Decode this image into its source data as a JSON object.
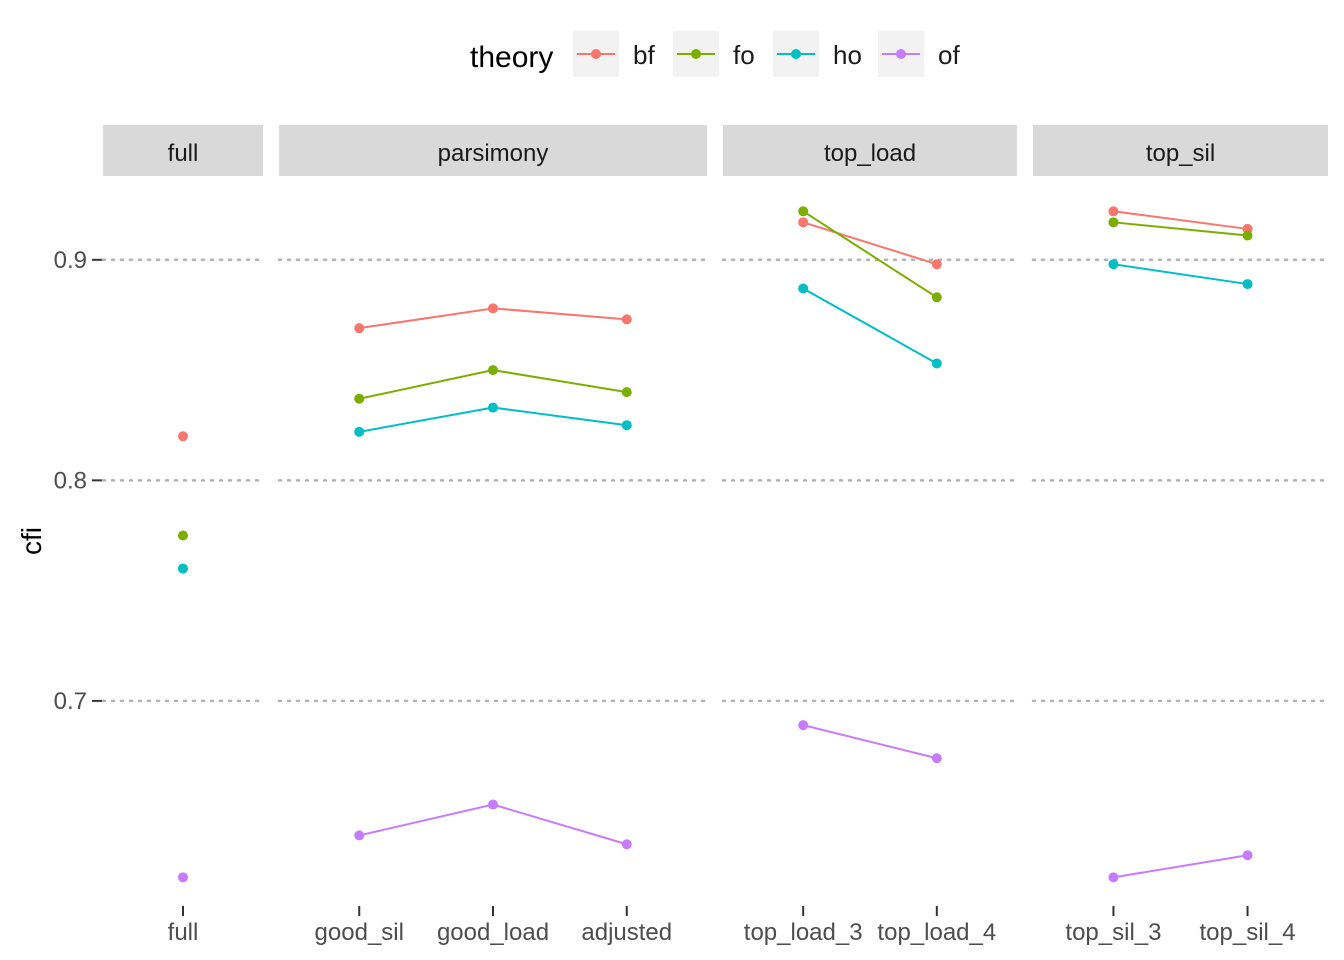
{
  "chart_data": {
    "type": "line",
    "ylabel": "cfi",
    "legend": {
      "title": "theory",
      "position": "top"
    },
    "colors": {
      "bf": "#F8766D",
      "fo": "#7CAE00",
      "ho": "#00BFC4",
      "of": "#C77CFF"
    },
    "ylim": [
      0.607,
      0.938
    ],
    "yticks": [
      0.7,
      0.8,
      0.9
    ],
    "ytick_labels": [
      "0.7",
      "0.8",
      "0.9"
    ],
    "grid": "horizontal-dotted",
    "panels": [
      {
        "label": "full",
        "categories": [
          "full"
        ],
        "series": [
          {
            "name": "bf",
            "values": [
              0.82
            ]
          },
          {
            "name": "fo",
            "values": [
              0.775
            ]
          },
          {
            "name": "ho",
            "values": [
              0.76
            ]
          },
          {
            "name": "of",
            "values": [
              0.62
            ]
          }
        ]
      },
      {
        "label": "parsimony",
        "categories": [
          "good_sil",
          "good_load",
          "adjusted"
        ],
        "series": [
          {
            "name": "bf",
            "values": [
              0.869,
              0.878,
              0.873
            ]
          },
          {
            "name": "fo",
            "values": [
              0.837,
              0.85,
              0.84
            ]
          },
          {
            "name": "ho",
            "values": [
              0.822,
              0.833,
              0.825
            ]
          },
          {
            "name": "of",
            "values": [
              0.639,
              0.653,
              0.635
            ]
          }
        ]
      },
      {
        "label": "top_load",
        "categories": [
          "top_load_3",
          "top_load_4"
        ],
        "series": [
          {
            "name": "bf",
            "values": [
              0.917,
              0.898
            ]
          },
          {
            "name": "fo",
            "values": [
              0.922,
              0.883
            ]
          },
          {
            "name": "ho",
            "values": [
              0.887,
              0.853
            ]
          },
          {
            "name": "of",
            "values": [
              0.689,
              0.674
            ]
          }
        ]
      },
      {
        "label": "top_sil",
        "categories": [
          "top_sil_3",
          "top_sil_4"
        ],
        "series": [
          {
            "name": "bf",
            "values": [
              0.922,
              0.914
            ]
          },
          {
            "name": "fo",
            "values": [
              0.917,
              0.911
            ]
          },
          {
            "name": "ho",
            "values": [
              0.898,
              0.889
            ]
          },
          {
            "name": "of",
            "values": [
              0.62,
              0.63
            ]
          }
        ]
      }
    ]
  }
}
